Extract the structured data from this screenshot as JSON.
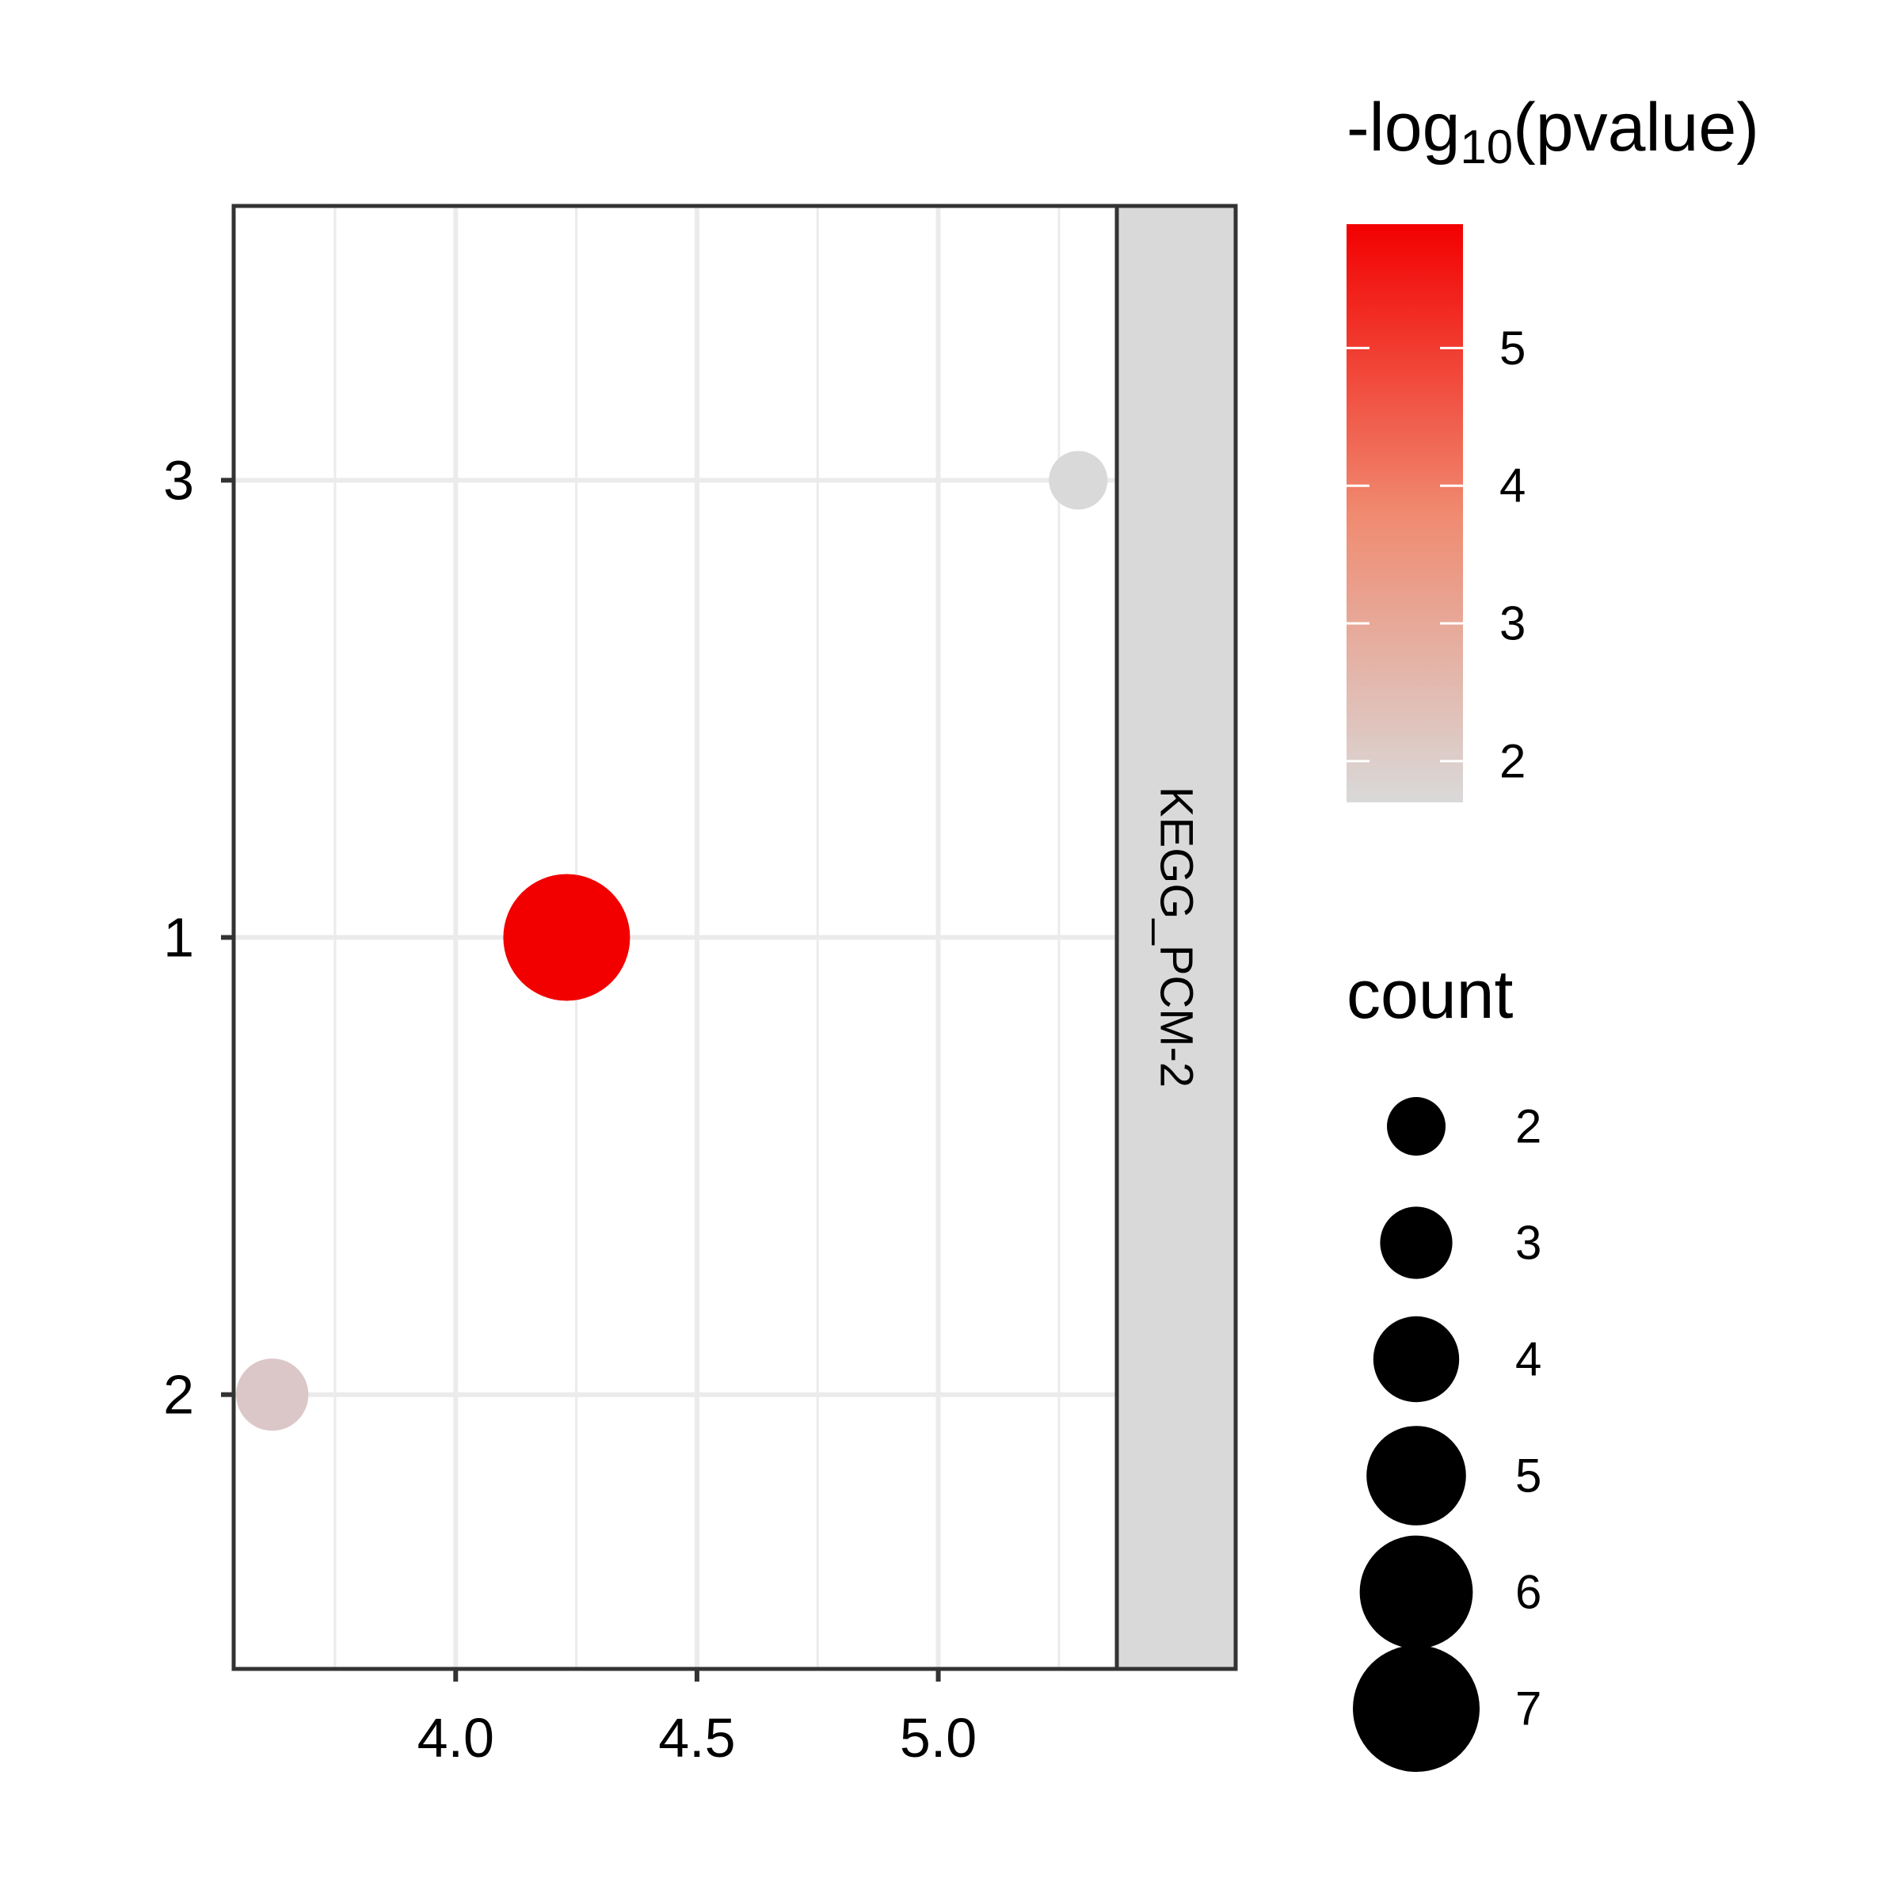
{
  "chart_data": {
    "type": "scatter",
    "title": "",
    "xlabel": "",
    "ylabel": "",
    "facet_label": "KEGG_PCM-2",
    "xlim": [
      3.54,
      5.37
    ],
    "x_ticks": [
      "4.0",
      "4.5",
      "5.0"
    ],
    "x_tick_values": [
      4.0,
      4.5,
      5.0
    ],
    "y_categories": [
      "2",
      "1",
      "3"
    ],
    "grid": true,
    "points": [
      {
        "x": 5.29,
        "y": "3",
        "count": 2,
        "neg_log10_pvalue": 1.7
      },
      {
        "x": 4.23,
        "y": "1",
        "count": 7,
        "neg_log10_pvalue": 5.9
      },
      {
        "x": 3.62,
        "y": "2",
        "count": 3,
        "neg_log10_pvalue": 2.05
      }
    ],
    "color_legend": {
      "title_prefix": "-log",
      "title_subscript": "10",
      "title_suffix": "(pvalue)",
      "min": 1.7,
      "max": 5.9,
      "ticks": [
        "5",
        "4",
        "3",
        "2"
      ],
      "tick_values": [
        5,
        4,
        3,
        2
      ],
      "low_color": "#d9d9d9",
      "high_color": "#f20000"
    },
    "size_legend": {
      "title": "count",
      "labels": [
        "2",
        "3",
        "4",
        "5",
        "6",
        "7"
      ],
      "values": [
        2,
        3,
        4,
        5,
        6,
        7
      ]
    },
    "legend_position": "right"
  }
}
